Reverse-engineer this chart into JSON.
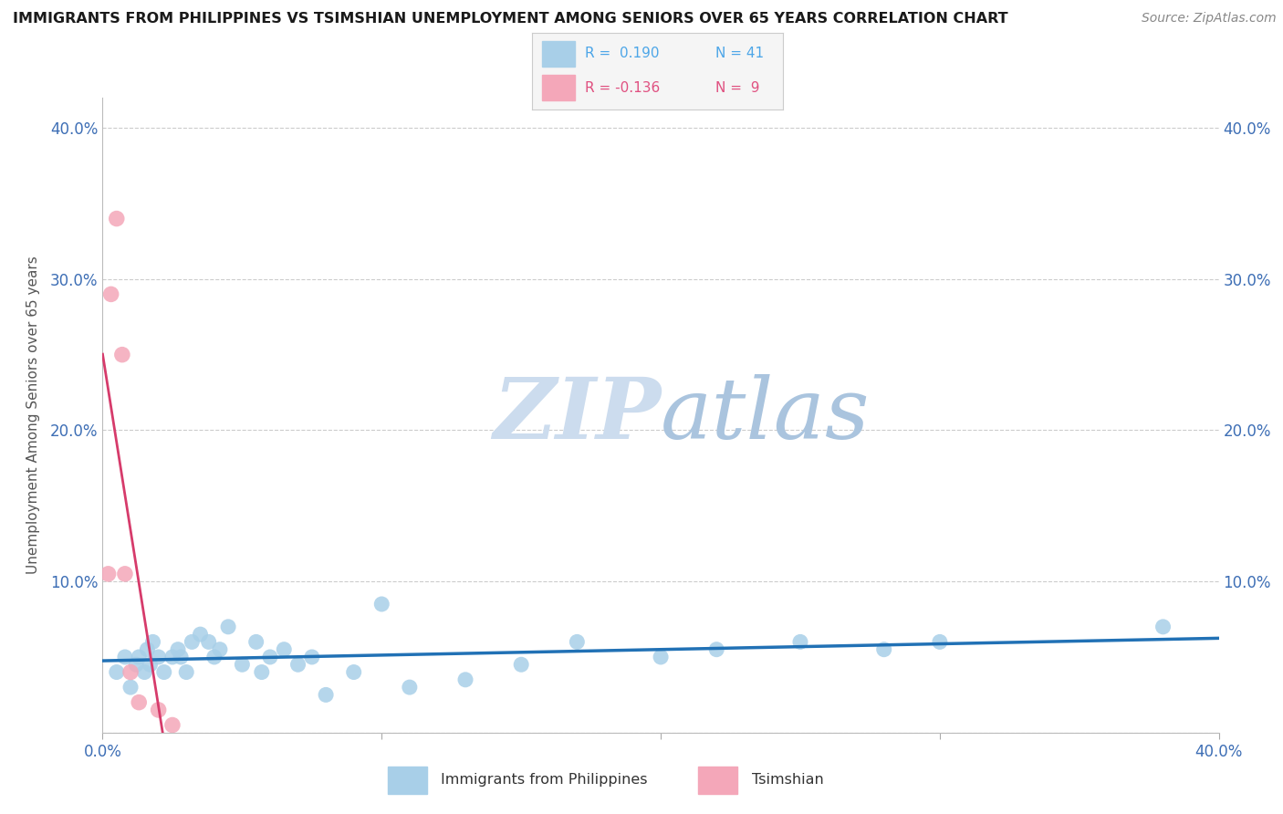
{
  "title": "IMMIGRANTS FROM PHILIPPINES VS TSIMSHIAN UNEMPLOYMENT AMONG SENIORS OVER 65 YEARS CORRELATION CHART",
  "source": "Source: ZipAtlas.com",
  "ylabel": "Unemployment Among Seniors over 65 years",
  "xlim": [
    0.0,
    0.4
  ],
  "ylim": [
    0.0,
    0.42
  ],
  "x_ticks": [
    0.0,
    0.1,
    0.2,
    0.3,
    0.4
  ],
  "x_tick_labels": [
    "0.0%",
    "",
    "",
    "",
    "40.0%"
  ],
  "y_ticks": [
    0.0,
    0.1,
    0.2,
    0.3,
    0.4
  ],
  "y_tick_labels": [
    "",
    "10.0%",
    "20.0%",
    "30.0%",
    "40.0%"
  ],
  "philippines_x": [
    0.005,
    0.008,
    0.01,
    0.012,
    0.013,
    0.015,
    0.016,
    0.017,
    0.018,
    0.02,
    0.022,
    0.025,
    0.027,
    0.028,
    0.03,
    0.032,
    0.035,
    0.038,
    0.04,
    0.042,
    0.045,
    0.05,
    0.055,
    0.057,
    0.06,
    0.065,
    0.07,
    0.075,
    0.08,
    0.09,
    0.1,
    0.11,
    0.13,
    0.15,
    0.17,
    0.2,
    0.22,
    0.25,
    0.28,
    0.3,
    0.38
  ],
  "philippines_y": [
    0.04,
    0.05,
    0.03,
    0.045,
    0.05,
    0.04,
    0.055,
    0.045,
    0.06,
    0.05,
    0.04,
    0.05,
    0.055,
    0.05,
    0.04,
    0.06,
    0.065,
    0.06,
    0.05,
    0.055,
    0.07,
    0.045,
    0.06,
    0.04,
    0.05,
    0.055,
    0.045,
    0.05,
    0.025,
    0.04,
    0.085,
    0.03,
    0.035,
    0.045,
    0.06,
    0.05,
    0.055,
    0.06,
    0.055,
    0.06,
    0.07
  ],
  "tsimshian_x": [
    0.002,
    0.003,
    0.005,
    0.007,
    0.008,
    0.01,
    0.013,
    0.02,
    0.025
  ],
  "tsimshian_y": [
    0.105,
    0.29,
    0.34,
    0.25,
    0.105,
    0.04,
    0.02,
    0.015,
    0.005
  ],
  "philippines_R": 0.19,
  "philippines_N": 41,
  "tsimshian_R": -0.136,
  "tsimshian_N": 9,
  "blue_dot_color": "#a8cfe8",
  "pink_dot_color": "#f4a7b9",
  "blue_line_color": "#2171b5",
  "pink_line_color": "#d63b6b",
  "pink_dash_color": "#e8799a",
  "axis_tick_color": "#3d6eb5",
  "grid_color": "#cccccc",
  "background_color": "#ffffff",
  "legend_box_color": "#f5f5f5",
  "legend_border_color": "#cccccc",
  "legend_blue_color": "#4da6e8",
  "legend_pink_color": "#e05080",
  "watermark_zip_color": "#ccdcee",
  "watermark_atlas_color": "#aac4de",
  "title_color": "#1a1a1a",
  "source_color": "#888888",
  "ylabel_color": "#555555"
}
